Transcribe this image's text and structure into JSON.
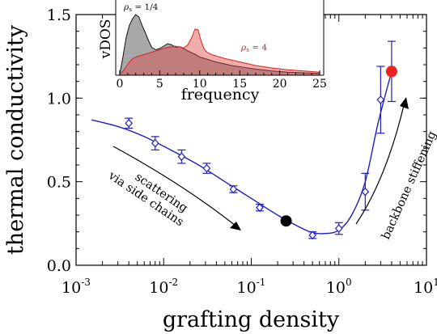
{
  "chart_data": [
    {
      "type": "scatter",
      "xlabel": "grafting density",
      "ylabel": "thermal conductivity",
      "xscale": "log",
      "xlim": [
        0.001,
        10
      ],
      "ylim": [
        0,
        1.5
      ],
      "yticks": [
        0.0,
        0.5,
        1.0,
        1.5
      ],
      "ytick_labels": [
        "0.0",
        "0.5",
        "1.0",
        "1.5"
      ],
      "xtick_labels": [
        {
          "base": "10",
          "exp": "-3"
        },
        {
          "base": "10",
          "exp": "-2"
        },
        {
          "base": "10",
          "exp": "-1"
        },
        {
          "base": "10",
          "exp": "0"
        },
        {
          "base": "10",
          "exp": "1"
        }
      ],
      "series": [
        {
          "marker": "diamond",
          "color": "#1f1fbf",
          "x": [
            0.004,
            0.008,
            0.016,
            0.031,
            0.0625,
            0.125,
            0.5,
            1.0,
            2.0,
            3.0
          ],
          "y": [
            0.85,
            0.73,
            0.65,
            0.58,
            0.455,
            0.345,
            0.18,
            0.22,
            0.44,
            0.99
          ],
          "yerr": [
            0.03,
            0.04,
            0.04,
            0.03,
            0.02,
            0.02,
            0.02,
            0.035,
            0.11,
            0.2
          ]
        }
      ],
      "fit_curve": {
        "color": "#1f1fbf",
        "x": [
          0.0015,
          0.003,
          0.006,
          0.012,
          0.025,
          0.05,
          0.1,
          0.2,
          0.35,
          0.5,
          0.7,
          1.0,
          1.4,
          2.0,
          2.8,
          4.0
        ],
        "y": [
          0.87,
          0.83,
          0.77,
          0.69,
          0.6,
          0.5,
          0.4,
          0.3,
          0.23,
          0.195,
          0.19,
          0.21,
          0.3,
          0.5,
          0.85,
          1.16
        ]
      },
      "highlights": [
        {
          "x": 0.25,
          "y": 0.265,
          "color": "#000000"
        },
        {
          "x": 4.0,
          "y": 1.16,
          "color": "#ee2222",
          "yerr": 0.18
        }
      ],
      "annotations": [
        {
          "text_lines": [
            "scattering",
            "via side chains"
          ]
        },
        {
          "text_lines": [
            "backbone stiffening"
          ]
        }
      ]
    },
    {
      "type": "area",
      "inset": true,
      "xlabel": "frequency",
      "ylabel": "vDOS",
      "xlim": [
        -0.5,
        25.5
      ],
      "xticks": [
        0,
        5,
        10,
        15,
        20,
        25
      ],
      "xtick_labels": [
        "0",
        "5",
        "10",
        "15",
        "20",
        "25"
      ],
      "series": [
        {
          "label_prefix": "ρ",
          "label_sub": "s",
          "label_value": " = 1/4",
          "fill": "#a8a8a8",
          "stroke": "#111111",
          "label_color": "#111111",
          "x": [
            0,
            0.4,
            0.8,
            1.2,
            1.6,
            2.0,
            2.4,
            2.8,
            3.2,
            3.6,
            4.0,
            4.5,
            5.0,
            5.5,
            6.0,
            6.5,
            7.0,
            7.5,
            8.0,
            8.5,
            9.0,
            9.5,
            10.0,
            11.0,
            12.0,
            13.0,
            14.0,
            15.0,
            17.0,
            19.0,
            21.0,
            23.0,
            25.0
          ],
          "y": [
            0.02,
            0.3,
            0.62,
            0.82,
            0.93,
            1.0,
            0.96,
            0.82,
            0.7,
            0.57,
            0.46,
            0.42,
            0.44,
            0.48,
            0.52,
            0.5,
            0.46,
            0.47,
            0.44,
            0.4,
            0.37,
            0.34,
            0.3,
            0.26,
            0.22,
            0.19,
            0.16,
            0.14,
            0.1,
            0.07,
            0.05,
            0.04,
            0.03
          ]
        },
        {
          "label_prefix": "ρ",
          "label_sub": "s",
          "label_value": " = 4",
          "fill": "rgba(225,70,70,0.45)",
          "stroke": "#e02020",
          "label_color": "#e02020",
          "x": [
            0,
            0.5,
            1.0,
            1.5,
            2.0,
            3.0,
            4.0,
            5.0,
            6.0,
            7.0,
            8.0,
            8.5,
            9.0,
            9.4,
            9.8,
            10.2,
            10.6,
            11.0,
            11.5,
            12.0,
            13.0,
            14.0,
            15.0,
            17.0,
            19.0,
            21.0,
            23.0,
            25.0
          ],
          "y": [
            0.01,
            0.08,
            0.18,
            0.26,
            0.3,
            0.34,
            0.38,
            0.42,
            0.46,
            0.48,
            0.45,
            0.5,
            0.62,
            0.76,
            0.75,
            0.55,
            0.42,
            0.37,
            0.34,
            0.32,
            0.28,
            0.25,
            0.22,
            0.16,
            0.12,
            0.09,
            0.07,
            0.05
          ]
        }
      ]
    }
  ]
}
